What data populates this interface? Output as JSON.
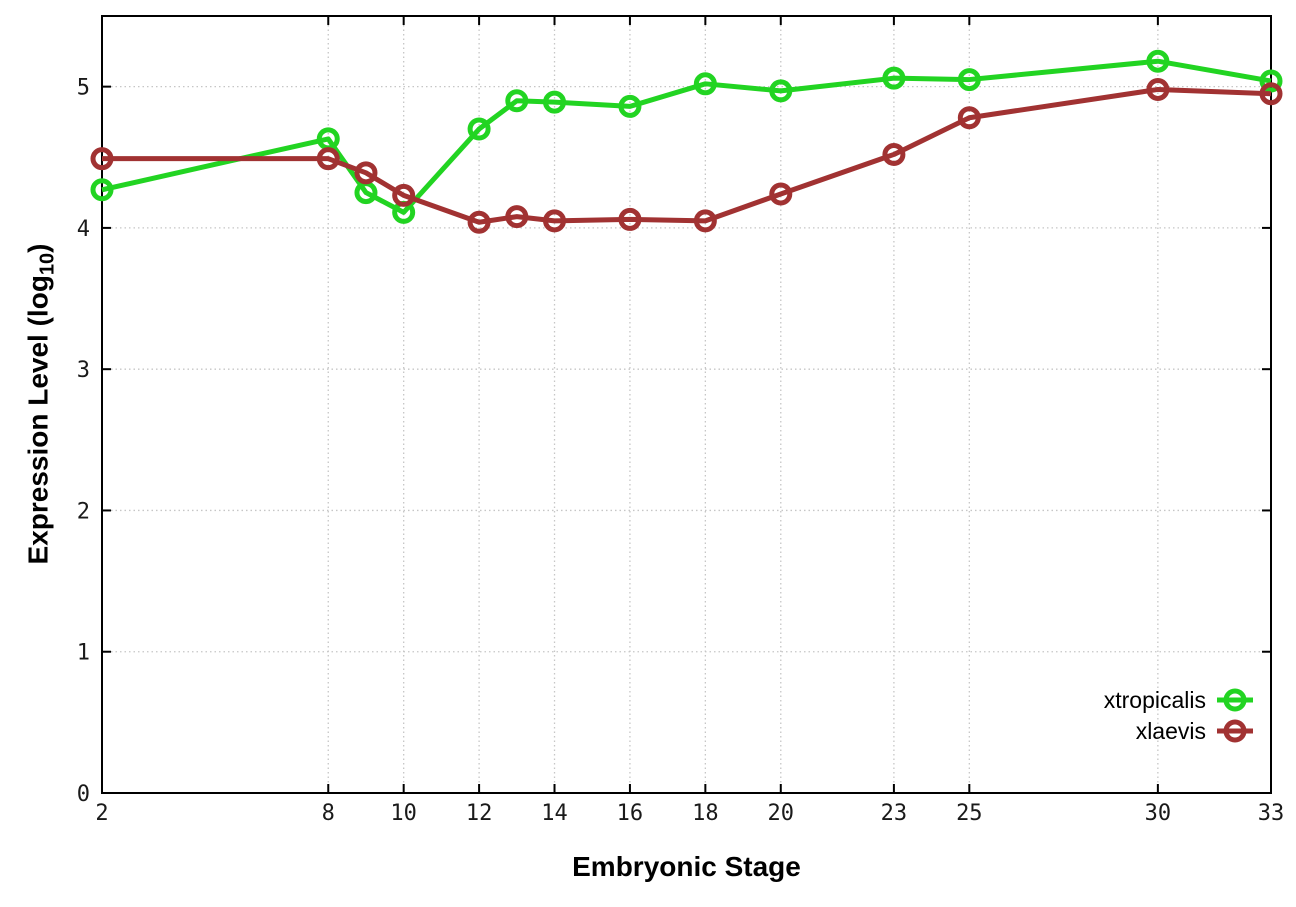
{
  "figure": {
    "xlabel": "Embryonic Stage",
    "ylabel_prefix": "Expression Level (log",
    "ylabel_sub": "10",
    "ylabel_suffix": ")"
  },
  "style": {
    "background": "#ffffff",
    "border_color": "#000000",
    "grid_color": "#c6c6c6",
    "tick_color": "#1a1a1a",
    "line_width": 5,
    "marker": "open-circle",
    "marker_radius": 9,
    "marker_stroke": 5
  },
  "chart_data": {
    "type": "line",
    "title": "",
    "xlabel": "Embryonic Stage",
    "ylabel": "Expression Level (log10)",
    "x": [
      2,
      8,
      9,
      10,
      12,
      13,
      14,
      16,
      18,
      20,
      23,
      25,
      30,
      33
    ],
    "series": [
      {
        "name": "xtropicalis",
        "color": "#22d422",
        "values": [
          4.27,
          4.63,
          4.25,
          4.11,
          4.7,
          4.9,
          4.89,
          4.86,
          5.02,
          4.97,
          5.06,
          5.05,
          5.18,
          5.04
        ]
      },
      {
        "name": "xlaevis",
        "color": "#a13232",
        "values": [
          4.49,
          4.49,
          4.39,
          4.23,
          4.04,
          4.08,
          4.05,
          4.06,
          4.05,
          4.24,
          4.52,
          4.78,
          4.98,
          4.95
        ]
      }
    ],
    "xticks": [
      2,
      8,
      10,
      12,
      14,
      16,
      18,
      20,
      23,
      25,
      30,
      33
    ],
    "yticks": [
      0,
      1,
      2,
      3,
      4,
      5
    ],
    "xlim": [
      2,
      33
    ],
    "ylim": [
      0,
      5.5
    ],
    "grid": true,
    "grid_style": "dotted",
    "legend_position": "bottom-right",
    "legend": [
      "xtropicalis",
      "xlaevis"
    ]
  }
}
